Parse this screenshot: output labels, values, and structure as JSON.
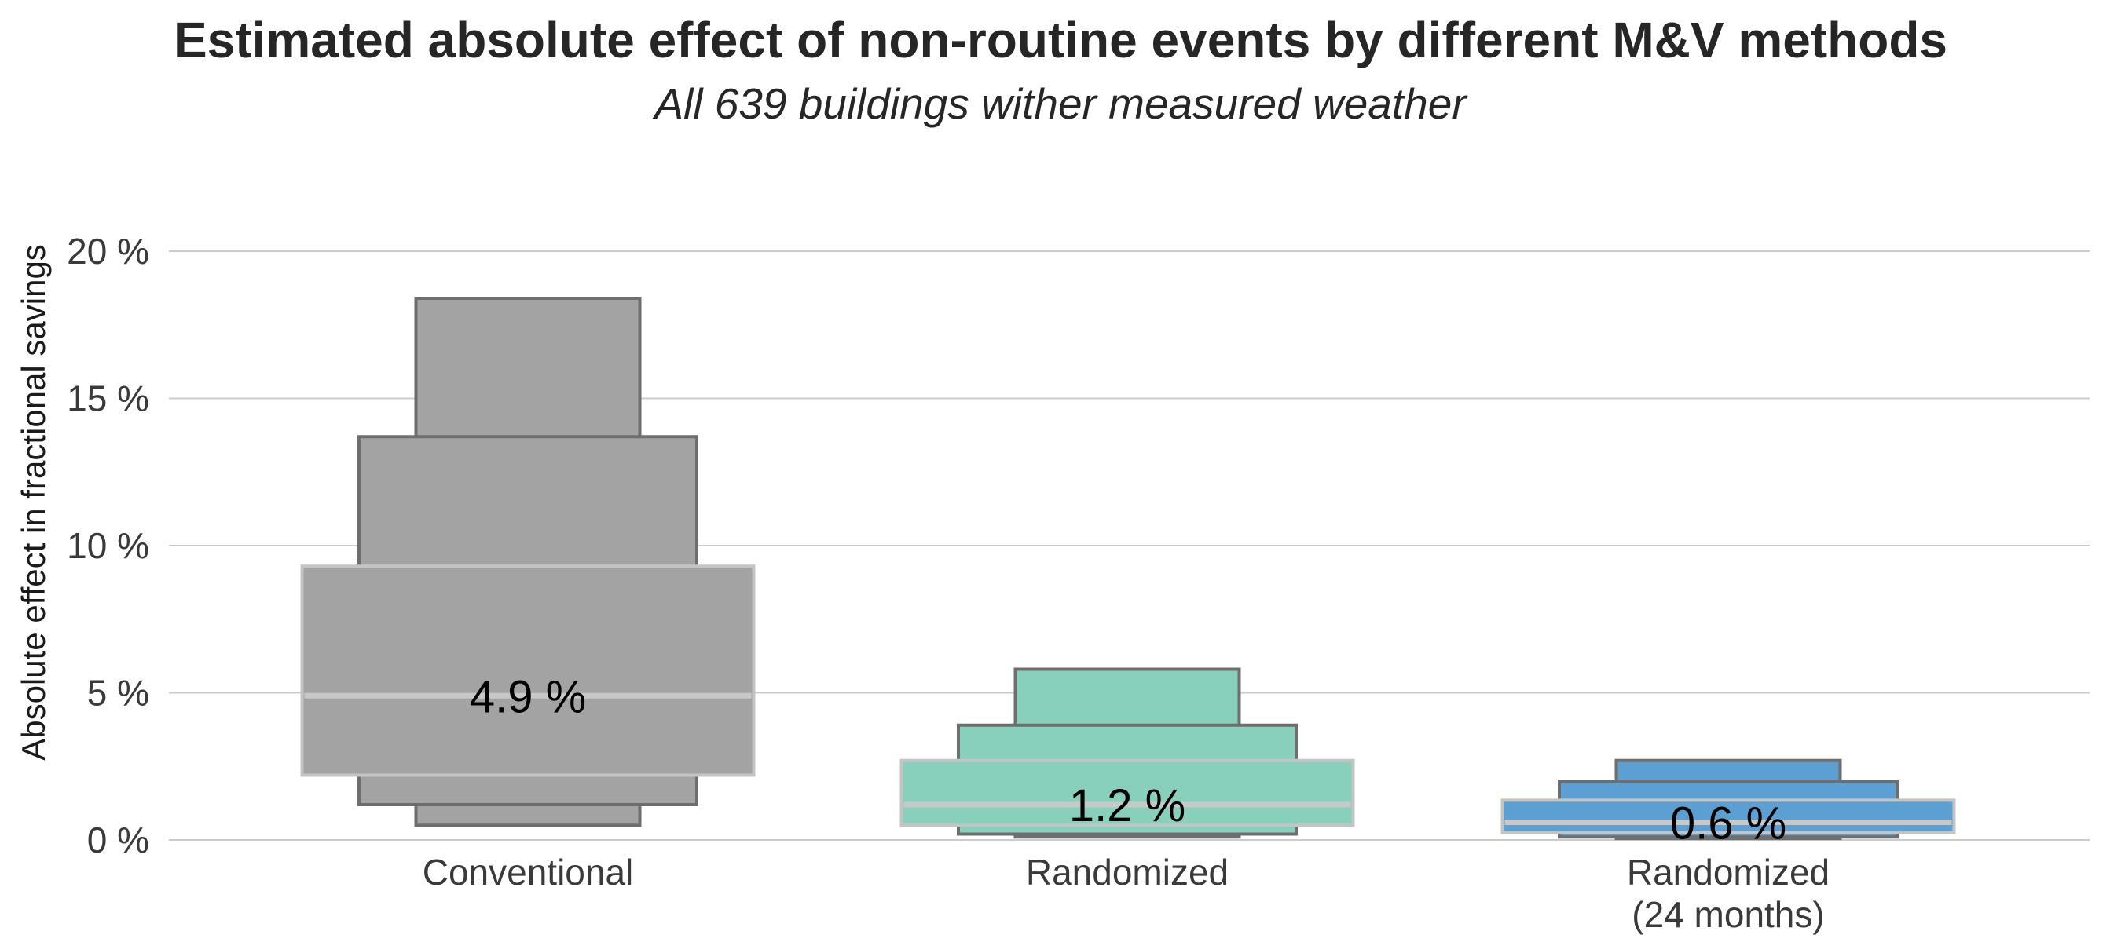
{
  "chart_data": {
    "type": "letter-value boxen plot",
    "title": "Estimated absolute effect of non-routine events by different M&V methods",
    "subtitle": "All 639 buildings wither measured weather",
    "ylabel": "Absolute effect in fractional savings",
    "xlabel": "",
    "ylim": [
      0,
      20
    ],
    "yticks": [
      0,
      5,
      10,
      15,
      20
    ],
    "ytick_labels": [
      "0 %",
      "5 %",
      "10 %",
      "15 %",
      "20 %"
    ],
    "grid": "horizontal",
    "categories": [
      "Conventional",
      "Randomized",
      "Randomized\n(24 months)"
    ],
    "series": [
      {
        "category": "Conventional",
        "color": "#a3a3a3",
        "median": 4.9,
        "median_label": "4.9 %",
        "boxes": [
          {
            "low": 2.2,
            "high": 9.3
          },
          {
            "low": 1.2,
            "high": 13.7
          },
          {
            "low": 0.5,
            "high": 18.4
          }
        ]
      },
      {
        "category": "Randomized",
        "color": "#89d0bc",
        "median": 1.2,
        "median_label": "1.2 %",
        "boxes": [
          {
            "low": 0.5,
            "high": 2.7
          },
          {
            "low": 0.2,
            "high": 3.9
          },
          {
            "low": 0.1,
            "high": 5.8
          }
        ]
      },
      {
        "category": "Randomized\n(24 months)",
        "color": "#5b9fd3",
        "median": 0.6,
        "median_label": "0.6 %",
        "boxes": [
          {
            "low": 0.25,
            "high": 1.35
          },
          {
            "low": 0.1,
            "high": 2.0
          },
          {
            "low": 0.05,
            "high": 2.7
          }
        ]
      }
    ]
  }
}
